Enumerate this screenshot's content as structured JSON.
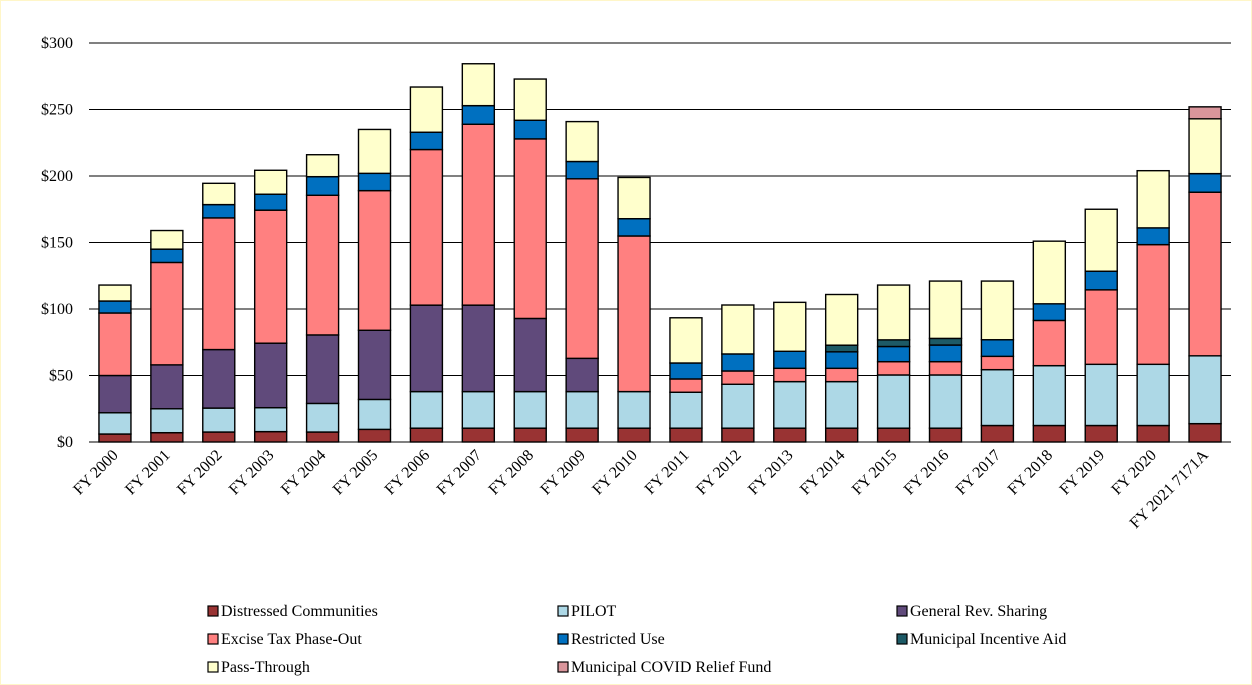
{
  "chart_data": {
    "type": "bar",
    "stacked": true,
    "title": "",
    "xlabel": "",
    "ylabel": "",
    "ylim": [
      0,
      300
    ],
    "y_ticks": [
      0,
      50,
      100,
      150,
      200,
      250,
      300
    ],
    "y_tick_labels": [
      "$0",
      "$50",
      "$100",
      "$150",
      "$200",
      "$250",
      "$300"
    ],
    "grid": "horizontal",
    "legend_position": "bottom",
    "categories": [
      "FY 2000",
      "FY 2001",
      "FY 2002",
      "FY 2003",
      "FY 2004",
      "FY 2005",
      "FY 2006",
      "FY 2007",
      "FY 2008",
      "FY 2009",
      "FY 2010",
      "FY 2011",
      "FY 2012",
      "FY 2013",
      "FY 2014",
      "FY 2015",
      "FY 2016",
      "FY 2017",
      "FY 2018",
      "FY 2019",
      "FY 2020",
      "FY 2021 7171A"
    ],
    "series": [
      {
        "name": "Distressed Communities",
        "color": "#993333",
        "values": [
          6,
          7,
          7.5,
          7.8,
          7.5,
          9.5,
          10.4,
          10.4,
          10.4,
          10.4,
          10.4,
          10.4,
          10.4,
          10.4,
          10.4,
          10.4,
          10.4,
          12.4,
          12.4,
          12.4,
          12.4,
          13.8
        ]
      },
      {
        "name": "PILOT",
        "color": "#add8e6",
        "values": [
          16,
          18,
          18,
          18,
          21.5,
          22.5,
          27.5,
          27.5,
          27.5,
          27.5,
          27.5,
          27,
          33,
          35,
          35,
          40,
          40,
          42,
          45,
          46,
          46,
          51
        ]
      },
      {
        "name": "General Rev. Sharing",
        "color": "#604a7b",
        "values": [
          28,
          33,
          44,
          48.5,
          51.5,
          52,
          65,
          65,
          55,
          25,
          0,
          0,
          0,
          0,
          0,
          0,
          0,
          0,
          0,
          0,
          0,
          0
        ]
      },
      {
        "name": "Excise Tax Phase-Out",
        "color": "#ff8080",
        "values": [
          47,
          77,
          99,
          100,
          105,
          105,
          117,
          136,
          135,
          135,
          117,
          10,
          10,
          10,
          10,
          10,
          10,
          10,
          34,
          56,
          90,
          123
        ]
      },
      {
        "name": "Restricted Use",
        "color": "#0070c0",
        "values": [
          9,
          10,
          10,
          12,
          14,
          13,
          13,
          14,
          14,
          13,
          13,
          12,
          12.8,
          12.8,
          12.4,
          11.4,
          12.5,
          12.5,
          12.5,
          14,
          12.6,
          14
        ]
      },
      {
        "name": "Municipal Incentive Aid",
        "color": "#1d5a66",
        "values": [
          0,
          0,
          0,
          0,
          0,
          0,
          0,
          0,
          0,
          0,
          0,
          0,
          0,
          0,
          5,
          5,
          5,
          0,
          0,
          0,
          0,
          0
        ]
      },
      {
        "name": "Pass-Through",
        "color": "#ffffcc",
        "values": [
          12,
          14,
          16,
          18,
          16.5,
          33,
          34,
          31.5,
          31,
          30,
          31,
          34,
          36.8,
          36.8,
          38.1,
          41.2,
          43.1,
          44.1,
          47.1,
          46.6,
          43,
          41.2
        ]
      },
      {
        "name": "Municipal COVID Relief Fund",
        "color": "#d9959b",
        "values": [
          0,
          0,
          0,
          0,
          0,
          0,
          0,
          0,
          0,
          0,
          0,
          0,
          0,
          0,
          0,
          0,
          0,
          0,
          0,
          0,
          0,
          9
        ]
      }
    ]
  }
}
